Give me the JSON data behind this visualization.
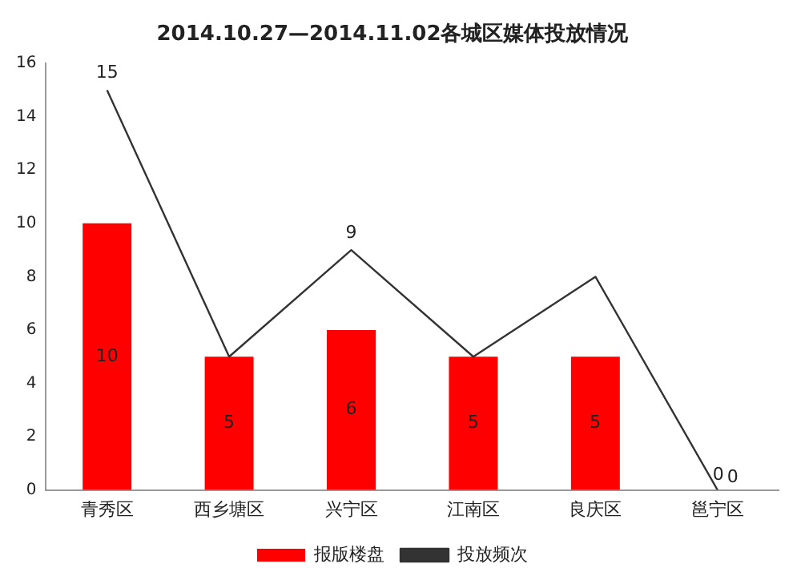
{
  "chart_data": {
    "type": "bar",
    "title": "2014.10.27—2014.11.02各城区媒体投放情况",
    "categories": [
      "青秀区",
      "西乡塘区",
      "兴宁区",
      "江南区",
      "良庆区",
      "邕宁区"
    ],
    "series": [
      {
        "name": "报版楼盘",
        "color": "#ff0000",
        "values": [
          10,
          5,
          6,
          5,
          5,
          0
        ],
        "value_labels": [
          "10",
          "5",
          "6",
          "5",
          "5",
          "0"
        ]
      },
      {
        "name": "投放频次",
        "type": "line",
        "color": "#333333",
        "values": [
          15,
          5,
          9,
          5,
          8,
          0
        ],
        "value_labels": [
          "15",
          null,
          "9",
          null,
          null,
          "0"
        ]
      }
    ],
    "ylim": [
      0,
      16
    ],
    "yticks": [
      0,
      2,
      4,
      6,
      8,
      10,
      12,
      14,
      16
    ],
    "grid": false,
    "legend": "bottom",
    "marker": "none"
  }
}
